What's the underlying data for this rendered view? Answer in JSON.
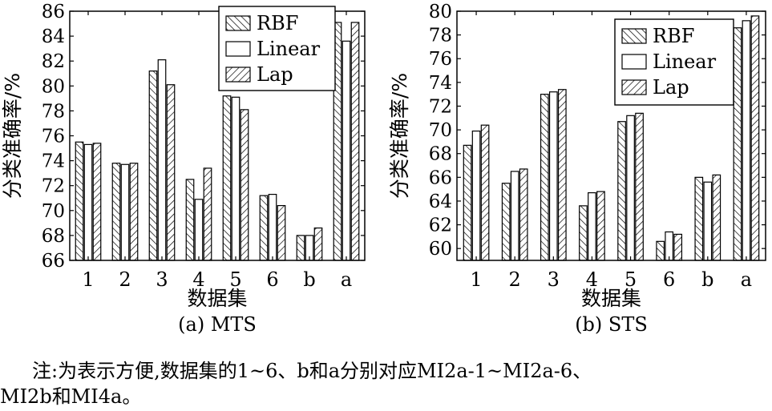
{
  "figure_note": {
    "line1": "注:为表示方便,数据集的1~6、b和a分别对应MI2a-1~MI2a-6、",
    "line2": "MI2b和MI4a。"
  },
  "chart_data": [
    {
      "type": "bar",
      "caption": "(a) MTS",
      "xlabel": "数据集",
      "ylabel": "分类准确率/%",
      "categories": [
        "1",
        "2",
        "3",
        "4",
        "5",
        "6",
        "b",
        "a"
      ],
      "ylim": [
        66,
        86
      ],
      "yticks": [
        66,
        68,
        70,
        72,
        74,
        76,
        78,
        80,
        82,
        84,
        86
      ],
      "legend_position": "top-right",
      "grid": false,
      "series": [
        {
          "name": "RBF",
          "values": [
            75.5,
            73.8,
            81.2,
            72.5,
            79.2,
            71.2,
            68.0,
            85.1
          ]
        },
        {
          "name": "Linear",
          "values": [
            75.3,
            73.7,
            82.1,
            70.9,
            79.1,
            71.3,
            68.0,
            83.6
          ]
        },
        {
          "name": "Lap",
          "values": [
            75.4,
            73.8,
            80.1,
            73.4,
            78.1,
            70.4,
            68.6,
            85.1
          ]
        }
      ]
    },
    {
      "type": "bar",
      "caption": "(b) STS",
      "xlabel": "数据集",
      "ylabel": "分类准确率/%",
      "categories": [
        "1",
        "2",
        "3",
        "4",
        "5",
        "6",
        "b",
        "a"
      ],
      "ylim": [
        59,
        80
      ],
      "yticks": [
        60,
        62,
        64,
        66,
        68,
        70,
        72,
        74,
        76,
        78,
        80
      ],
      "legend_position": "top-right",
      "grid": false,
      "series": [
        {
          "name": "RBF",
          "values": [
            68.7,
            65.5,
            73.0,
            63.6,
            70.7,
            60.6,
            66.0,
            78.6
          ]
        },
        {
          "name": "Linear",
          "values": [
            69.9,
            66.5,
            73.2,
            64.7,
            71.2,
            61.4,
            65.6,
            79.2
          ]
        },
        {
          "name": "Lap",
          "values": [
            70.4,
            66.7,
            73.4,
            64.8,
            71.4,
            61.2,
            66.2,
            79.6
          ]
        }
      ]
    }
  ]
}
